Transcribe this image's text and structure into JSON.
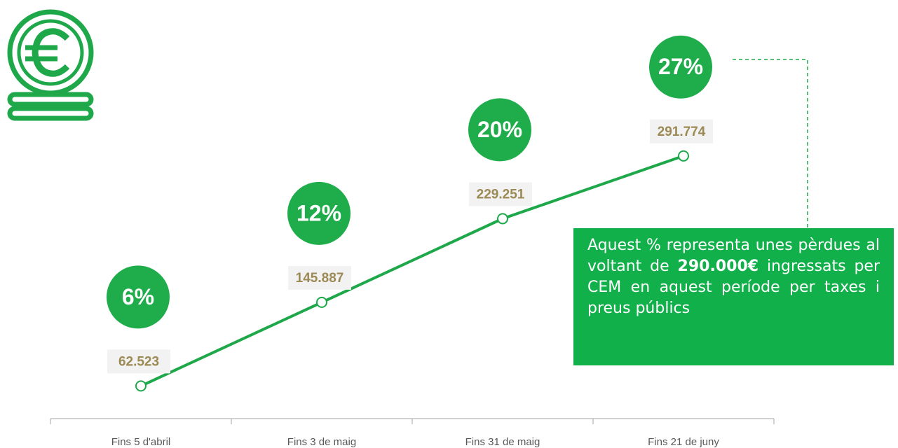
{
  "chart_data": {
    "type": "line",
    "categories": [
      "Fins 5 d'abril",
      "Fins 3 de maig",
      "Fins 31 de maig",
      "Fins 21 de juny"
    ],
    "values": [
      62523,
      145887,
      229251,
      291774
    ],
    "value_labels": [
      "62.523",
      "145.887",
      "229.251",
      "291.774"
    ],
    "color": "#1ea84a",
    "ylim": [
      30000,
      330000
    ],
    "annotations": [
      "6%",
      "12%",
      "20%",
      "27%"
    ],
    "note": {
      "before": "Aquest % representa unes pèrdues al voltant de ",
      "bold": "290.000€",
      "after": " ingressats per CEM en aquest període per taxes i preus públics"
    }
  }
}
